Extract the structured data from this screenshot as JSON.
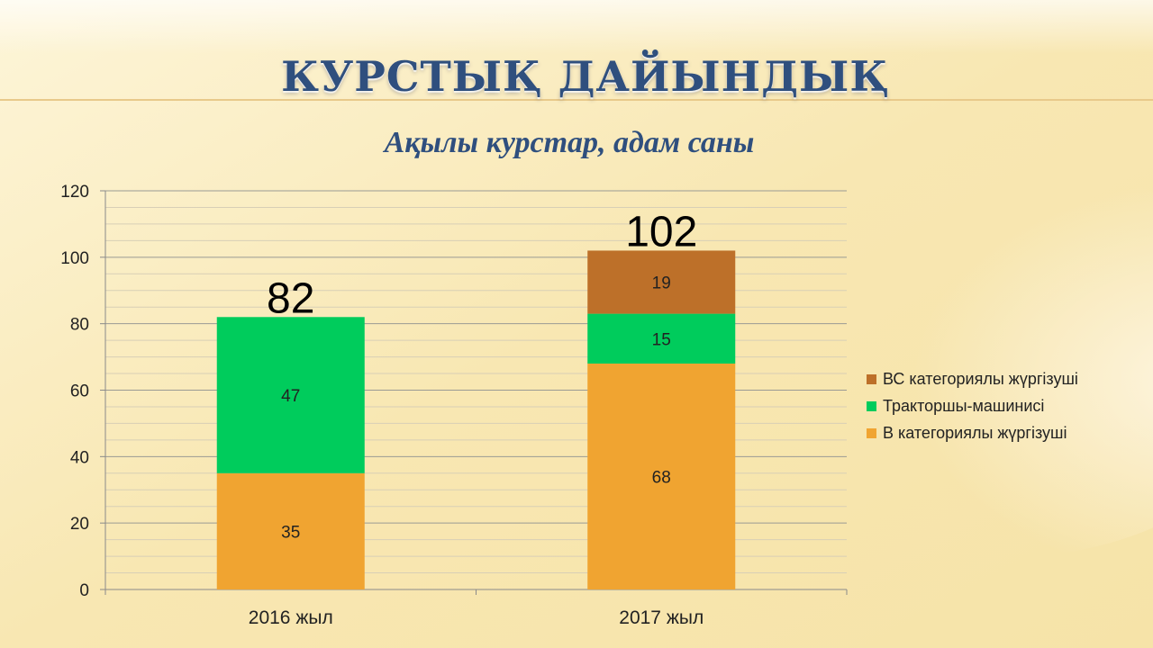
{
  "slide": {
    "title": "КУРСТЫҚ ДАЙЫНДЫҚ",
    "subtitle": "Ақылы курстар, адам саны"
  },
  "chart_data": {
    "type": "bar",
    "stacked": true,
    "categories": [
      "2016 жыл",
      "2017 жыл"
    ],
    "series": [
      {
        "name": "В категориялы жүргізуші",
        "values": [
          35,
          68
        ],
        "color": "#f0a431"
      },
      {
        "name": "Тракторшы-машинисі",
        "values": [
          47,
          15
        ],
        "color": "#00cc5c"
      },
      {
        "name": "ВС категориялы жүргізуші",
        "values": [
          0,
          19
        ],
        "color": "#bd7029"
      }
    ],
    "totals": [
      82,
      102
    ],
    "ylim": [
      0,
      120
    ],
    "yticks": [
      0,
      20,
      40,
      60,
      80,
      100,
      120
    ],
    "grid": true,
    "legend": "right",
    "title": "",
    "xlabel": "",
    "ylabel": ""
  }
}
